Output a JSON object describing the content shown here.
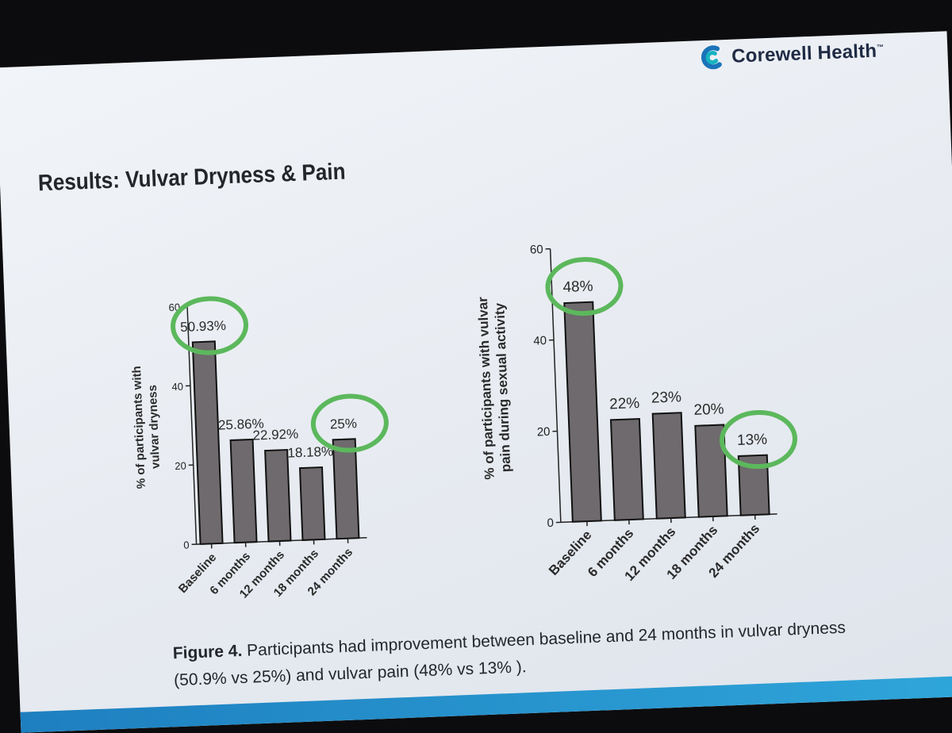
{
  "slide": {
    "brand": {
      "name": "Corewell Health",
      "trademark": "™",
      "colors": {
        "blue": "#1a73b8",
        "teal": "#17b3c0",
        "text": "#1f2a44"
      }
    },
    "title": "Results: Vulvar Dryness & Pain",
    "caption": {
      "label": "Figure 4.",
      "text": "Participants had improvement between baseline and 24 months in vulvar dryness (50.9% vs 25%) and vulvar pain (48% vs 13% )."
    },
    "colors": {
      "bar": "#6e6a6d",
      "bar_outline": "#111111",
      "circle": "#5cb85c",
      "accent_bar": "#2a92cf"
    }
  },
  "chart_data": [
    {
      "type": "bar",
      "ylabel": "% of participants with vulvar dryness",
      "ylabel_lines": [
        "% of participants with",
        "vulvar dryness"
      ],
      "categories": [
        "Baseline",
        "6 months",
        "12 months",
        "18 months",
        "24 months"
      ],
      "values": [
        50.93,
        25.86,
        22.92,
        18.18,
        25
      ],
      "data_labels": [
        "50.93%",
        "25.86%",
        "22.92%",
        "18.18%",
        "25%"
      ],
      "ylim": [
        0,
        60
      ],
      "yticks": [
        0,
        20,
        40,
        60
      ],
      "circled": [
        "Baseline",
        "24 months"
      ]
    },
    {
      "type": "bar",
      "ylabel": "% of participants with vulvar pain during sexual activity",
      "ylabel_lines": [
        "% of participants with vulvar",
        "pain during sexual activity"
      ],
      "categories": [
        "Baseline",
        "6 months",
        "12 months",
        "18 months",
        "24 months"
      ],
      "values": [
        48,
        22,
        23,
        20,
        13
      ],
      "data_labels": [
        "48%",
        "22%",
        "23%",
        "20%",
        "13%"
      ],
      "ylim": [
        0,
        60
      ],
      "yticks": [
        0,
        20,
        40,
        60
      ],
      "circled": [
        "Baseline",
        "24 months"
      ]
    }
  ]
}
